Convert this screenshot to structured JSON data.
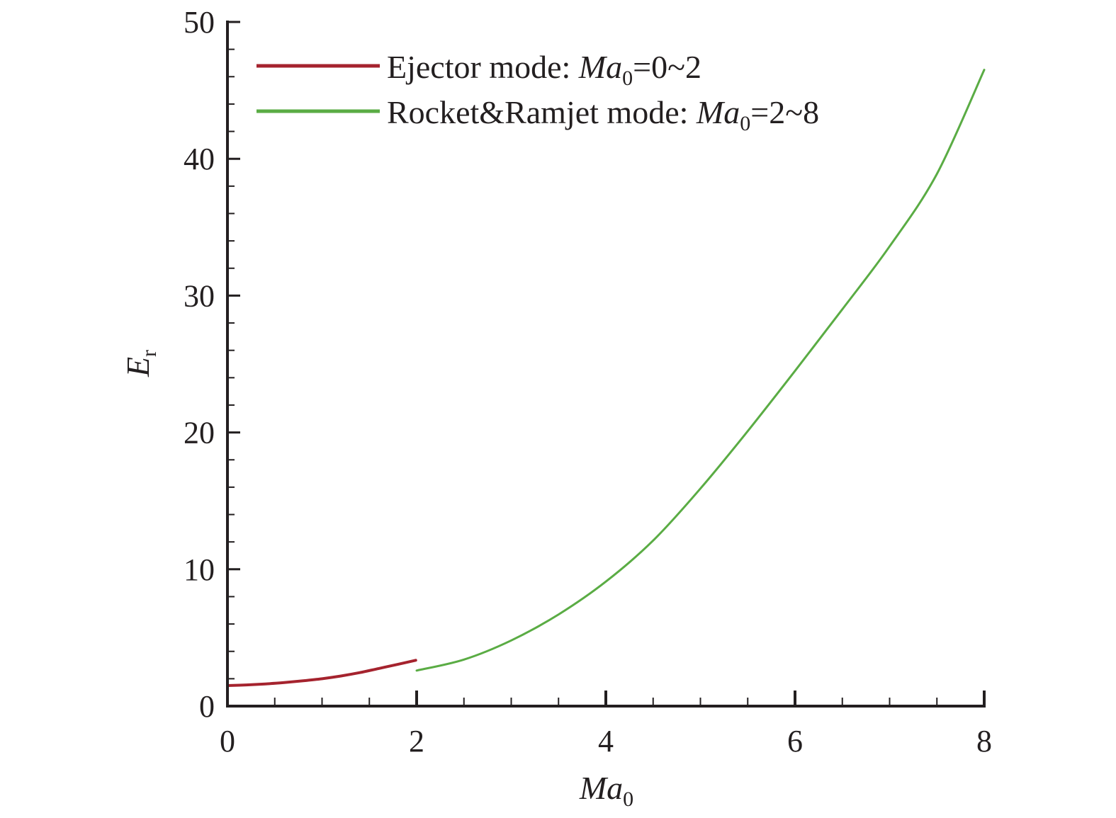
{
  "chart_data": {
    "type": "line",
    "title": "",
    "xlabel": {
      "main": "Ma",
      "sub": "0"
    },
    "ylabel": {
      "main": "E",
      "sub": "r"
    },
    "xlim": [
      0,
      8
    ],
    "ylim": [
      0,
      50
    ],
    "x_ticks": [
      0,
      2,
      4,
      6,
      8
    ],
    "x_tick_labels": [
      "0",
      "2",
      "4",
      "6",
      "8"
    ],
    "x_minor_step": 0.5,
    "y_ticks": [
      0,
      10,
      20,
      30,
      40,
      50
    ],
    "y_tick_labels": [
      "0",
      "10",
      "20",
      "30",
      "40",
      "50"
    ],
    "y_minor_step": 2,
    "grid": false,
    "legend_position": "top-left",
    "series": [
      {
        "name": "Ejector mode: Ma0=0~2",
        "legend": {
          "text": "Ejector mode: ",
          "var": "Ma",
          "sub": "0",
          "range": "=0~2"
        },
        "color": "#a5232e",
        "x": [
          0.0,
          0.2,
          0.4,
          0.6,
          0.8,
          1.0,
          1.2,
          1.4,
          1.6,
          1.8,
          1.99
        ],
        "y": [
          1.5,
          1.55,
          1.62,
          1.72,
          1.85,
          2.0,
          2.2,
          2.45,
          2.75,
          3.05,
          3.35
        ]
      },
      {
        "name": "Rocket&Ramjet mode: Ma0=2~8",
        "legend": {
          "text": "Rocket&Ramjet mode: ",
          "var": "Ma",
          "sub": "0",
          "range": "=2~8"
        },
        "color": "#5aac44",
        "x": [
          2.0,
          2.5,
          3.0,
          3.5,
          4.0,
          4.5,
          5.0,
          5.5,
          6.0,
          6.5,
          7.0,
          7.5,
          8.0
        ],
        "y": [
          2.6,
          3.4,
          4.8,
          6.7,
          9.1,
          12.1,
          15.9,
          20.1,
          24.5,
          29.0,
          33.6,
          38.9,
          46.5
        ]
      }
    ]
  }
}
